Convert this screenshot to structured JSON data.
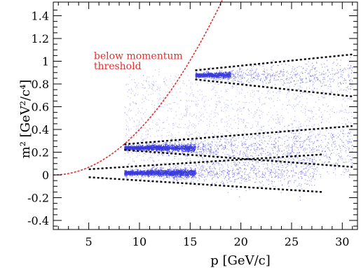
{
  "chart_data": {
    "type": "scatter",
    "title": "",
    "xlabel": "p [GeV/c]",
    "ylabel": "m² [GeV²/c⁴]",
    "xlim": [
      1.5,
      31.5
    ],
    "ylim": [
      -0.48,
      1.52
    ],
    "xticks": [
      5,
      10,
      15,
      20,
      25,
      30
    ],
    "yticks": [
      -0.4,
      -0.2,
      0,
      0.2,
      0.4,
      0.6,
      0.8,
      1,
      1.2,
      1.4
    ],
    "ytick_labels": [
      "-0.4",
      "-0.2",
      "0",
      "0.2",
      "0.4",
      "0.6",
      "0.8",
      "1",
      "1.2",
      "1.4"
    ],
    "grid": false,
    "scatter_color": "#3a3ae0",
    "band_line_color": "#000000",
    "threshold_color": "#e03030",
    "bands": [
      {
        "m2": 0.02,
        "p_range": [
          8.5,
          27.5
        ],
        "core_range": [
          8.5,
          15.5
        ]
      },
      {
        "m2": 0.24,
        "p_range": [
          8.5,
          31
        ],
        "core_range": [
          8.5,
          15.5
        ]
      },
      {
        "m2": 0.88,
        "p_range": [
          15.5,
          31
        ],
        "core_range": [
          15.5,
          19
        ]
      }
    ],
    "band_lines": [
      {
        "x": [
          5,
          28
        ],
        "y": [
          0.05,
          0.18
        ]
      },
      {
        "x": [
          5,
          28
        ],
        "y": [
          -0.02,
          -0.15
        ]
      },
      {
        "x": [
          8.5,
          31
        ],
        "y": [
          0.27,
          0.43
        ]
      },
      {
        "x": [
          8.5,
          31
        ],
        "y": [
          0.22,
          0.07
        ]
      },
      {
        "x": [
          15.5,
          31
        ],
        "y": [
          0.92,
          1.06
        ]
      },
      {
        "x": [
          15.5,
          31
        ],
        "y": [
          0.84,
          0.69
        ]
      }
    ],
    "threshold_curve": {
      "x0": 1.5,
      "y0": 0.0,
      "k": 0.00553,
      "x_end": 19
    },
    "annotations": [
      {
        "text": "below momentum",
        "x": 5.5,
        "y": 1.02
      },
      {
        "text": "threshold",
        "x": 5.5,
        "y": 0.93
      }
    ]
  }
}
